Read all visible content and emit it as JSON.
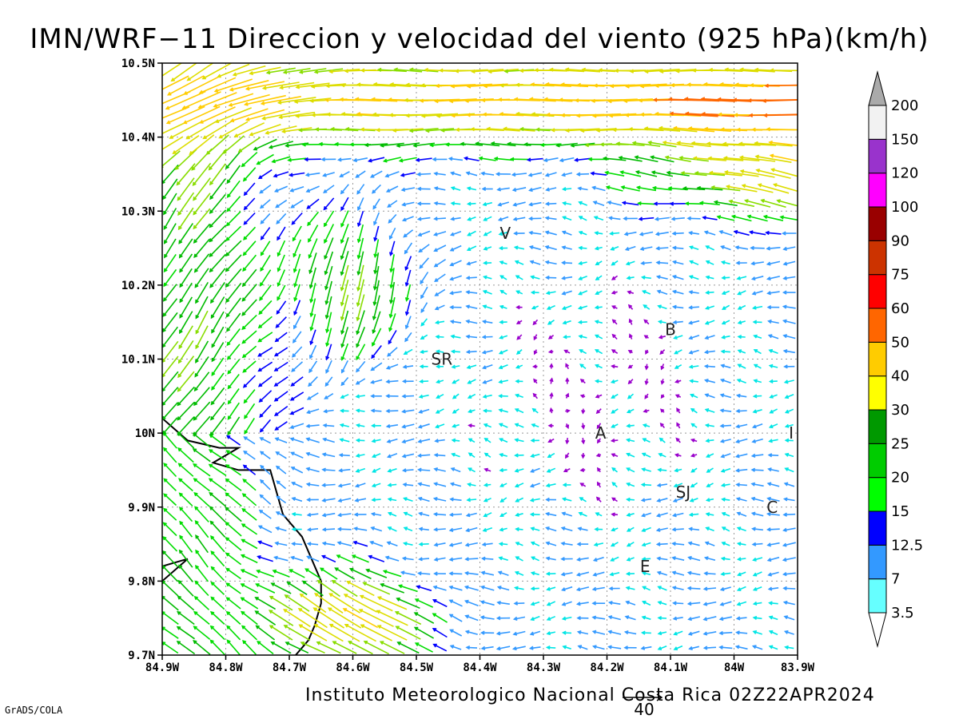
{
  "chart_data": {
    "type": "vector-field",
    "title": "IMN/WRF−11 Direccion y velocidad del viento (925 hPa)(km/h)",
    "x_ticks": [
      "84.9W",
      "84.8W",
      "84.7W",
      "84.6W",
      "84.5W",
      "84.4W",
      "84.3W",
      "84.2W",
      "84.1W",
      "84W",
      "83.9W"
    ],
    "y_ticks": [
      "10.5N",
      "10.4N",
      "10.3N",
      "10.2N",
      "10.1N",
      "10N",
      "9.9N",
      "9.8N",
      "9.7N"
    ],
    "xlim": [
      -84.9,
      -83.9
    ],
    "ylim": [
      9.7,
      10.5
    ],
    "grid": true,
    "colorbar": {
      "levels": [
        "3.5",
        "7",
        "12.5",
        "15",
        "20",
        "25",
        "30",
        "40",
        "50",
        "60",
        "75",
        "90",
        "100",
        "120",
        "150",
        "200"
      ],
      "colors": [
        "#ffffff",
        "#66ffff",
        "#3399ff",
        "#0000ff",
        "#00ff00",
        "#00cc00",
        "#009900",
        "#ffff00",
        "#ffcc00",
        "#ff6600",
        "#ff0000",
        "#cc3300",
        "#990000",
        "#ff00ff",
        "#9933cc",
        "#f2f2f2",
        "#aaaaaa"
      ]
    },
    "places": [
      {
        "label": "V",
        "lon": -84.36,
        "lat": 10.27
      },
      {
        "label": "B",
        "lon": -84.1,
        "lat": 10.14
      },
      {
        "label": "SR",
        "lon": -84.46,
        "lat": 10.1
      },
      {
        "label": "A",
        "lon": -84.21,
        "lat": 10.0
      },
      {
        "label": "I",
        "lon": -83.91,
        "lat": 10.0
      },
      {
        "label": "SJ",
        "lon": -84.08,
        "lat": 9.92
      },
      {
        "label": "C",
        "lon": -83.94,
        "lat": 9.9
      },
      {
        "label": "E",
        "lon": -84.14,
        "lat": 9.82
      }
    ],
    "reference_vector": {
      "value": "40"
    },
    "coastline": [
      [
        -84.9,
        10.02
      ],
      [
        -84.86,
        9.99
      ],
      [
        -84.81,
        9.98
      ],
      [
        -84.78,
        9.98
      ],
      [
        -84.82,
        9.96
      ],
      [
        -84.78,
        9.95
      ],
      [
        -84.73,
        9.95
      ],
      [
        -84.72,
        9.92
      ],
      [
        -84.71,
        9.89
      ],
      [
        -84.68,
        9.86
      ],
      [
        -84.66,
        9.82
      ],
      [
        -84.65,
        9.8
      ],
      [
        -84.65,
        9.77
      ],
      [
        -84.66,
        9.74
      ],
      [
        -84.67,
        9.72
      ],
      [
        -84.69,
        9.7
      ]
    ],
    "coastline2": [
      [
        -84.9,
        9.82
      ],
      [
        -84.86,
        9.83
      ],
      [
        -84.9,
        9.8
      ]
    ]
  },
  "footer": {
    "institution": "Instituto Meteorologico Nacional Costa Rica 02Z22APR2024",
    "credit": "GrADS/COLA"
  }
}
